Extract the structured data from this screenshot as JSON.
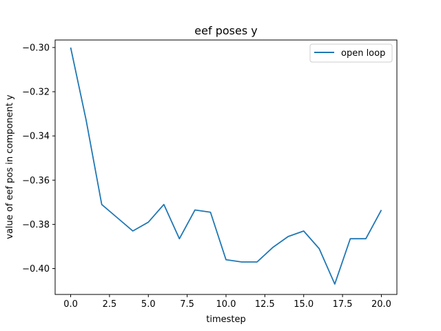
{
  "chart_data": {
    "type": "line",
    "title": "eef poses y",
    "xlabel": "timestep",
    "ylabel": "value of eef pos in component y",
    "xlim": [
      -1.0,
      21.0
    ],
    "ylim": [
      -0.4117,
      -0.2966
    ],
    "xticks": [
      0.0,
      2.5,
      5.0,
      7.5,
      10.0,
      12.5,
      15.0,
      17.5,
      20.0
    ],
    "xtick_labels": [
      "0.0",
      "2.5",
      "5.0",
      "7.5",
      "10.0",
      "12.5",
      "15.0",
      "17.5",
      "20.0"
    ],
    "yticks": [
      -0.3,
      -0.32,
      -0.34,
      -0.36,
      -0.38,
      -0.4
    ],
    "ytick_labels": [
      "−0.30",
      "−0.32",
      "−0.34",
      "−0.36",
      "−0.38",
      "−0.40"
    ],
    "grid": false,
    "legend_position": "top-right",
    "series": [
      {
        "name": "open loop",
        "color": "#1f77b4",
        "x": [
          0,
          1,
          2,
          3,
          4,
          5,
          6,
          7,
          8,
          9,
          10,
          11,
          12,
          13,
          14,
          15,
          16,
          17,
          18,
          19,
          20
        ],
        "y": [
          -0.3,
          -0.333,
          -0.371,
          -0.377,
          -0.383,
          -0.379,
          -0.371,
          -0.3865,
          -0.3735,
          -0.3745,
          -0.396,
          -0.397,
          -0.397,
          -0.3905,
          -0.3855,
          -0.383,
          -0.391,
          -0.407,
          -0.3865,
          -0.3865,
          -0.3735
        ]
      }
    ]
  }
}
